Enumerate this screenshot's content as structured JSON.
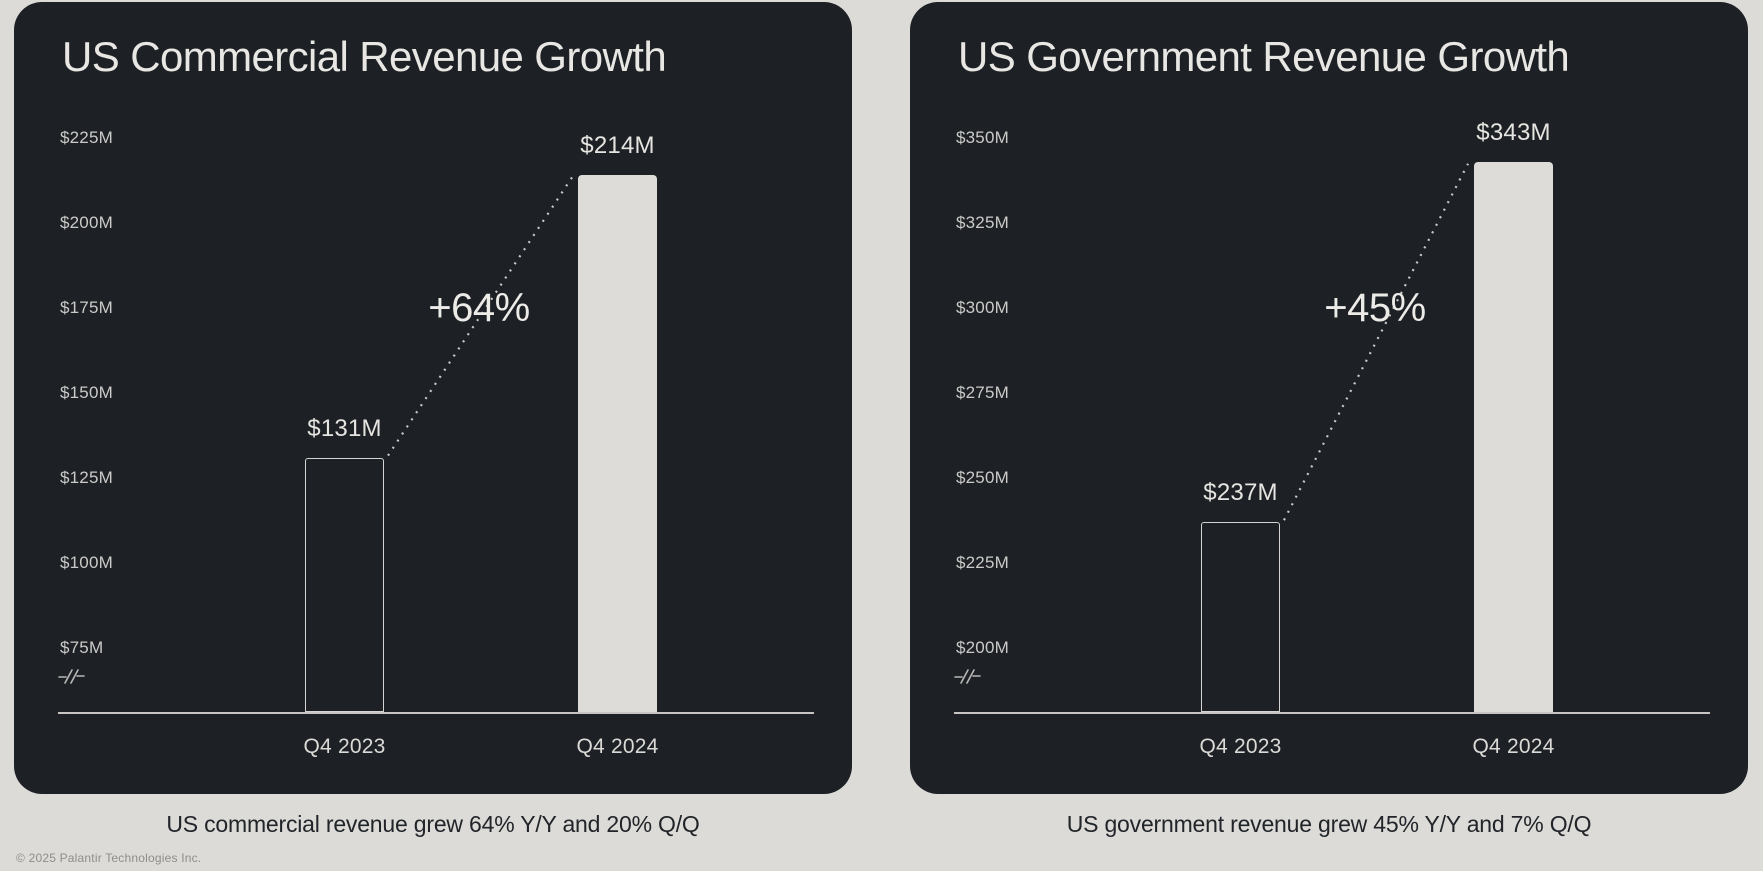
{
  "page": {
    "copyright": "© 2025 Palantir Technologies Inc."
  },
  "colors": {
    "page_bg": "#dcdbd8",
    "card_bg": "#1d2125",
    "title_text": "#e9e7e4",
    "tick_text": "#cbcac8",
    "bar_fill": "#dedcd9",
    "bar_outline": "#d5d4d2",
    "value_label_text": "#e7e5e2",
    "x_label_text": "#dbdad7",
    "growth_text": "#edebe8",
    "dotted_line": "#c9c8c6",
    "baseline": "#c6c5c3",
    "caption_text": "#212428",
    "copyright_text": "#8e8e8c"
  },
  "chart_data": [
    {
      "type": "bar",
      "title": "US Commercial Revenue Growth",
      "categories": [
        "Q4 2023",
        "Q4 2024"
      ],
      "values": [
        131,
        214
      ],
      "value_labels": [
        "$131M",
        "$214M"
      ],
      "bar_styles": [
        "outline",
        "fill"
      ],
      "growth_annotation": "+64%",
      "caption": "US commercial revenue grew 64% Y/Y and 20% Q/Q",
      "ylabel_ticks": [
        "$225M",
        "$200M",
        "$175M",
        "$150M",
        "$125M",
        "$100M",
        "$75M"
      ],
      "tick_values": [
        225,
        200,
        175,
        150,
        125,
        100,
        75
      ],
      "ylim": [
        75,
        225
      ],
      "tick_step": 25,
      "unit": "$M",
      "axis_break": true,
      "grid": false,
      "legend": false
    },
    {
      "type": "bar",
      "title": "US Government Revenue Growth",
      "categories": [
        "Q4 2023",
        "Q4 2024"
      ],
      "values": [
        237,
        343
      ],
      "value_labels": [
        "$237M",
        "$343M"
      ],
      "bar_styles": [
        "outline",
        "fill"
      ],
      "growth_annotation": "+45%",
      "caption": "US government revenue grew 45% Y/Y and 7% Q/Q",
      "ylabel_ticks": [
        "$350M",
        "$325M",
        "$300M",
        "$275M",
        "$250M",
        "$225M",
        "$200M"
      ],
      "tick_values": [
        350,
        325,
        300,
        275,
        250,
        225,
        200
      ],
      "ylim": [
        200,
        350
      ],
      "tick_step": 25,
      "unit": "$M",
      "axis_break": true,
      "grid": false,
      "legend": false
    }
  ]
}
